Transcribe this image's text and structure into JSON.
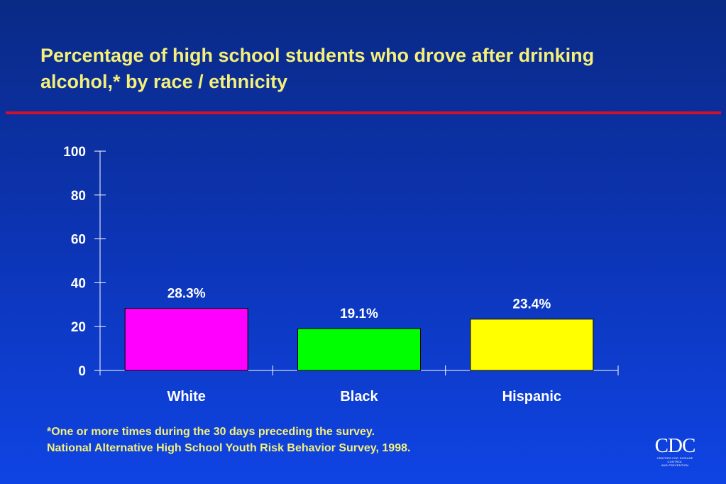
{
  "slide": {
    "title_line1": "Percentage of high school students who drove after drinking",
    "title_line2": "alcohol,* by race / ethnicity",
    "footnote_line1": "*One or more times during the 30 days preceding the survey.",
    "footnote_line2": "National Alternative High School Youth Risk Behavior Survey, 1998.",
    "logo_text": "CDC",
    "logo_tagline_line1": "CENTERS FOR DISEASE CONTROL",
    "logo_tagline_line2": "AND PREVENTION"
  },
  "colors": {
    "title": "#f4f07a",
    "rule": "#d4102b",
    "axis": "#ffffff"
  },
  "chart_data": {
    "type": "bar",
    "categories": [
      "White",
      "Black",
      "Hispanic"
    ],
    "values": [
      28.3,
      19.1,
      23.4
    ],
    "data_labels": [
      "28.3%",
      "19.1%",
      "23.4%"
    ],
    "bar_colors": [
      "#ff00ff",
      "#00ff00",
      "#ffff00"
    ],
    "yticks": [
      0,
      20,
      40,
      60,
      80,
      100
    ],
    "ylim": [
      0,
      100
    ],
    "xlabel": "",
    "ylabel": "",
    "grid": false,
    "legend": "none"
  }
}
